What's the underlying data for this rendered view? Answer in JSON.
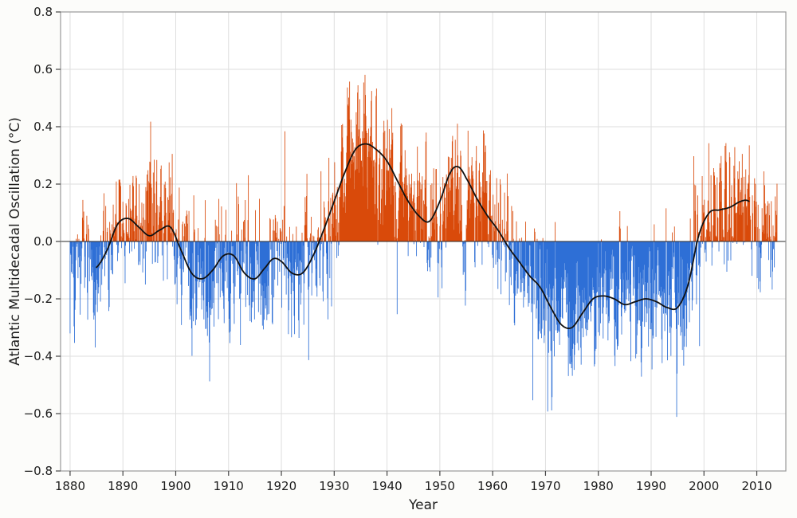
{
  "figure": {
    "xlabel": "Year",
    "ylabel": "Atlantic Multidecadal Oscillation (°C)"
  },
  "chart_data": {
    "type": "area",
    "title": "",
    "xlabel": "Year",
    "ylabel": "Atlantic Multidecadal Oscillation (°C)",
    "xlim": [
      1878.2,
      2015.5
    ],
    "ylim": [
      -0.8,
      0.8
    ],
    "x_ticks": [
      1880,
      1890,
      1900,
      1910,
      1920,
      1930,
      1940,
      1950,
      1960,
      1970,
      1980,
      1990,
      2000,
      2010
    ],
    "y_ticks": [
      -0.8,
      -0.6,
      -0.4,
      -0.2,
      0.0,
      0.2,
      0.4,
      0.6,
      0.8
    ],
    "y_tick_labels": [
      "−0.8",
      "−0.6",
      "−0.4",
      "−0.2",
      "0.0",
      "0.2",
      "0.4",
      "0.6",
      "0.8"
    ],
    "grid": true,
    "legend": "none",
    "colors": {
      "positive_bars": "#d94a0a",
      "negative_bars": "#2e6fd6",
      "smoothed_line": "#111111",
      "gridline": "#dedede",
      "frame": "#9a9a9a",
      "zero_line": "#2a2a2a"
    },
    "series": [
      {
        "name": "Monthly AMO anomaly (bars, red positive / blue negative)",
        "type": "bars"
      },
      {
        "name": "Decadal smoothed AMO (black line)",
        "type": "line"
      }
    ],
    "smoothed_points": [
      [
        1880,
        -0.07
      ],
      [
        1882,
        -0.09
      ],
      [
        1885,
        -0.09
      ],
      [
        1887,
        -0.03
      ],
      [
        1889,
        0.06
      ],
      [
        1891,
        0.08
      ],
      [
        1893,
        0.05
      ],
      [
        1895,
        0.02
      ],
      [
        1897,
        0.04
      ],
      [
        1899,
        0.05
      ],
      [
        1901,
        -0.03
      ],
      [
        1903,
        -0.11
      ],
      [
        1905,
        -0.13
      ],
      [
        1907,
        -0.1
      ],
      [
        1909,
        -0.05
      ],
      [
        1911,
        -0.05
      ],
      [
        1913,
        -0.11
      ],
      [
        1915,
        -0.13
      ],
      [
        1917,
        -0.09
      ],
      [
        1918.5,
        -0.06
      ],
      [
        1920,
        -0.07
      ],
      [
        1922,
        -0.11
      ],
      [
        1924,
        -0.11
      ],
      [
        1926,
        -0.05
      ],
      [
        1928,
        0.04
      ],
      [
        1930,
        0.14
      ],
      [
        1932,
        0.24
      ],
      [
        1934,
        0.32
      ],
      [
        1936,
        0.34
      ],
      [
        1938,
        0.32
      ],
      [
        1940,
        0.28
      ],
      [
        1942,
        0.21
      ],
      [
        1944,
        0.14
      ],
      [
        1946,
        0.09
      ],
      [
        1948,
        0.07
      ],
      [
        1950,
        0.14
      ],
      [
        1952,
        0.24
      ],
      [
        1953.5,
        0.26
      ],
      [
        1955,
        0.22
      ],
      [
        1957,
        0.15
      ],
      [
        1959,
        0.09
      ],
      [
        1961,
        0.04
      ],
      [
        1963,
        -0.02
      ],
      [
        1965,
        -0.07
      ],
      [
        1967,
        -0.12
      ],
      [
        1969,
        -0.16
      ],
      [
        1971,
        -0.23
      ],
      [
        1973,
        -0.29
      ],
      [
        1975,
        -0.3
      ],
      [
        1977,
        -0.25
      ],
      [
        1979,
        -0.2
      ],
      [
        1981,
        -0.19
      ],
      [
        1983,
        -0.2
      ],
      [
        1985,
        -0.22
      ],
      [
        1987,
        -0.21
      ],
      [
        1989,
        -0.2
      ],
      [
        1991,
        -0.21
      ],
      [
        1993,
        -0.23
      ],
      [
        1995,
        -0.23
      ],
      [
        1997,
        -0.15
      ],
      [
        1999,
        0.02
      ],
      [
        2001,
        0.1
      ],
      [
        2003,
        0.11
      ],
      [
        2005,
        0.12
      ],
      [
        2007,
        0.14
      ],
      [
        2008.5,
        0.14
      ],
      [
        2010,
        0.1
      ],
      [
        2012,
        0.08
      ],
      [
        2013.9,
        0.1
      ]
    ],
    "smoothed_line_range": [
      1885,
      2008.5
    ],
    "monthly_bars": {
      "start": 1880.0,
      "end": 2013.9,
      "per_year": 12,
      "noise_amplitude": 0.26,
      "noise_persistence": 0.45,
      "spike_probability": 0.07,
      "spike_scale": 1.9,
      "max_value": 0.8,
      "min_value": -0.64,
      "seed": 12345
    }
  }
}
